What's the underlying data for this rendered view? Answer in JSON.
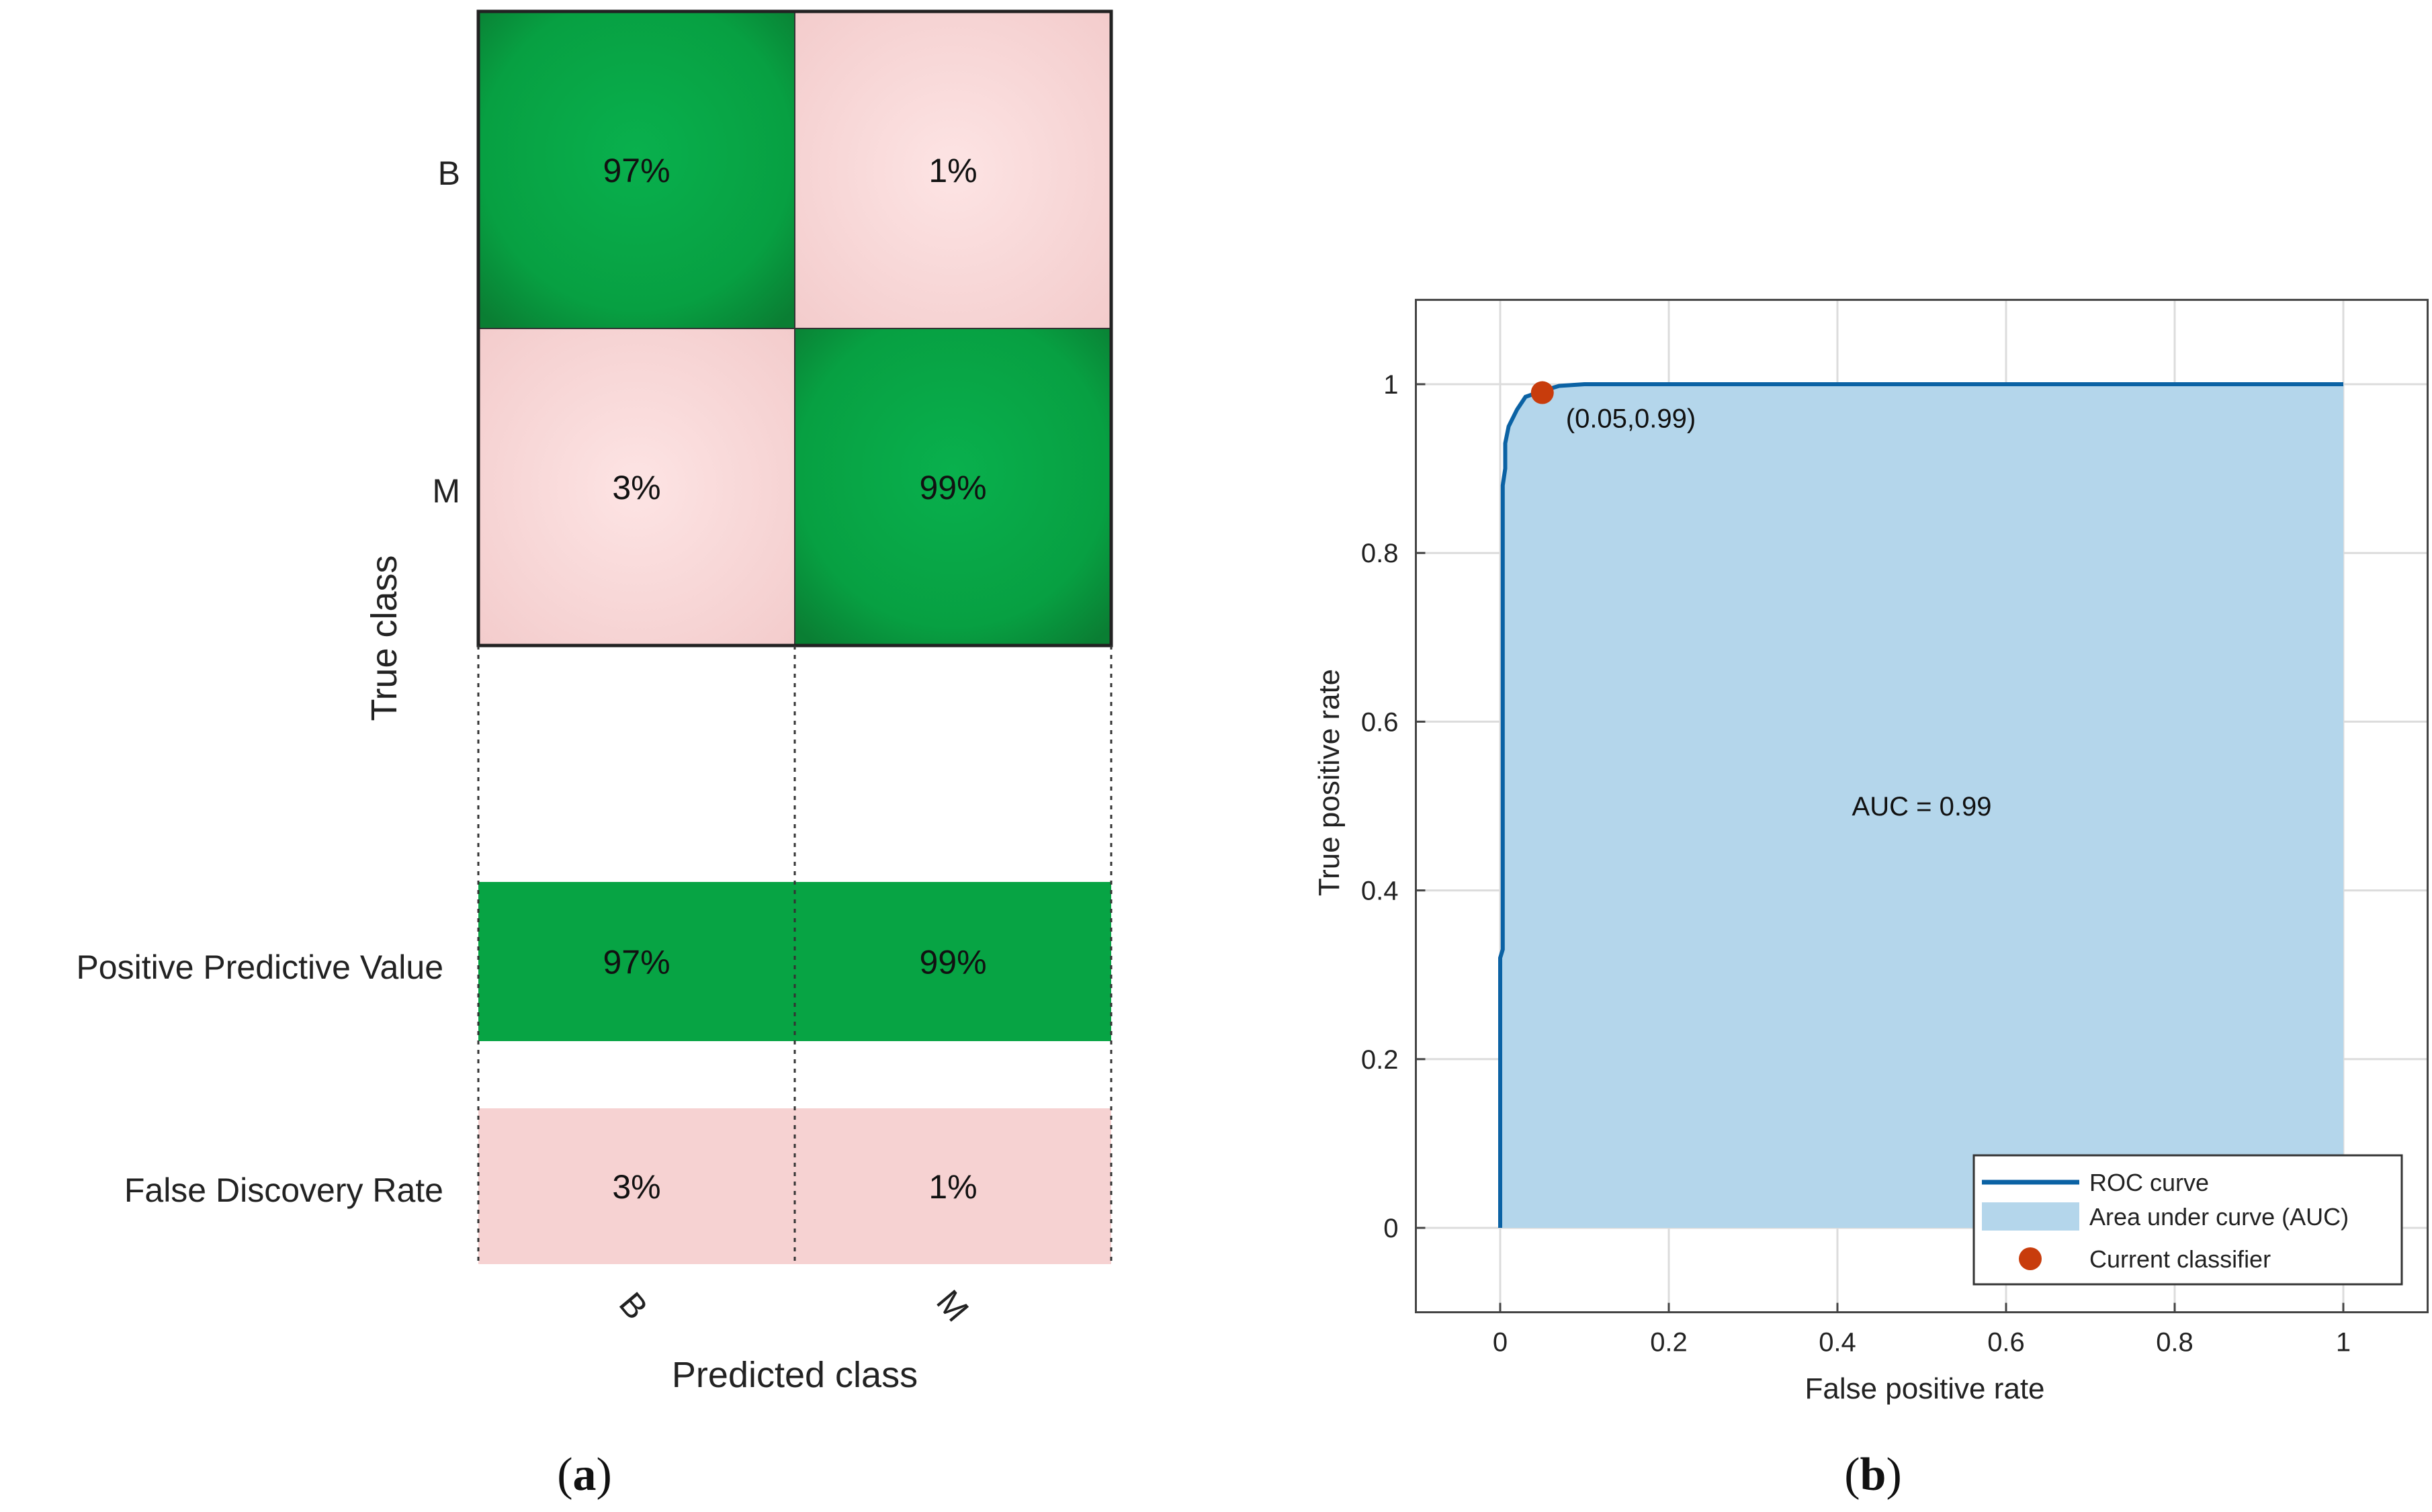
{
  "chart_data": [
    {
      "type": "heatmap",
      "subfigure": "a",
      "caption_letter": "a",
      "caption_open": "(",
      "caption_close": ")",
      "xlabel": "Predicted class",
      "ylabel": "True class",
      "classes": [
        "B",
        "M"
      ],
      "matrix": [
        [
          "97%",
          "1%"
        ],
        [
          "3%",
          "99%"
        ]
      ],
      "summary_rows": [
        {
          "label": "Positive Predictive Value",
          "values": [
            "97%",
            "99%"
          ]
        },
        {
          "label": "False Discovery Rate",
          "values": [
            "3%",
            "1%"
          ]
        }
      ],
      "colors": {
        "high": "#07a444",
        "high_edge": "#0a7a30",
        "low": "#f6d2d2",
        "low_center": "#fde4e4"
      }
    },
    {
      "type": "area",
      "subfigure": "b",
      "caption_letter": "b",
      "caption_open": "(",
      "caption_close": ")",
      "xlabel": "False positive rate",
      "ylabel": "True positive rate",
      "xlim": [
        -0.1,
        1.1
      ],
      "ylim": [
        -0.1,
        1.1
      ],
      "xticks": [
        0,
        0.2,
        0.4,
        0.6,
        0.8,
        1
      ],
      "xtick_labels": [
        "0",
        "0.2",
        "0.4",
        "0.6",
        "0.8",
        "1"
      ],
      "yticks": [
        0,
        0.2,
        0.4,
        0.6,
        0.8,
        1
      ],
      "ytick_labels": [
        "0",
        "0.2",
        "0.4",
        "0.6",
        "0.8",
        "1"
      ],
      "grid": true,
      "roc_x": [
        0,
        0,
        0.003,
        0.003,
        0.006,
        0.006,
        0.01,
        0.02,
        0.03,
        0.05,
        0.07,
        0.1,
        1
      ],
      "roc_y": [
        0,
        0.32,
        0.33,
        0.88,
        0.9,
        0.93,
        0.95,
        0.97,
        0.985,
        0.992,
        0.998,
        1,
        1
      ],
      "current_classifier": {
        "x": 0.05,
        "y": 0.99,
        "label": "(0.05,0.99)"
      },
      "auc_text": "AUC = 0.99",
      "legend": {
        "position": "bottom-right",
        "entries": [
          "ROC curve",
          "Area under curve (AUC)",
          "Current classifier"
        ]
      },
      "colors": {
        "line": "#0b62a4",
        "fill": "#b4d6eb",
        "marker": "#c83c0c"
      }
    }
  ]
}
